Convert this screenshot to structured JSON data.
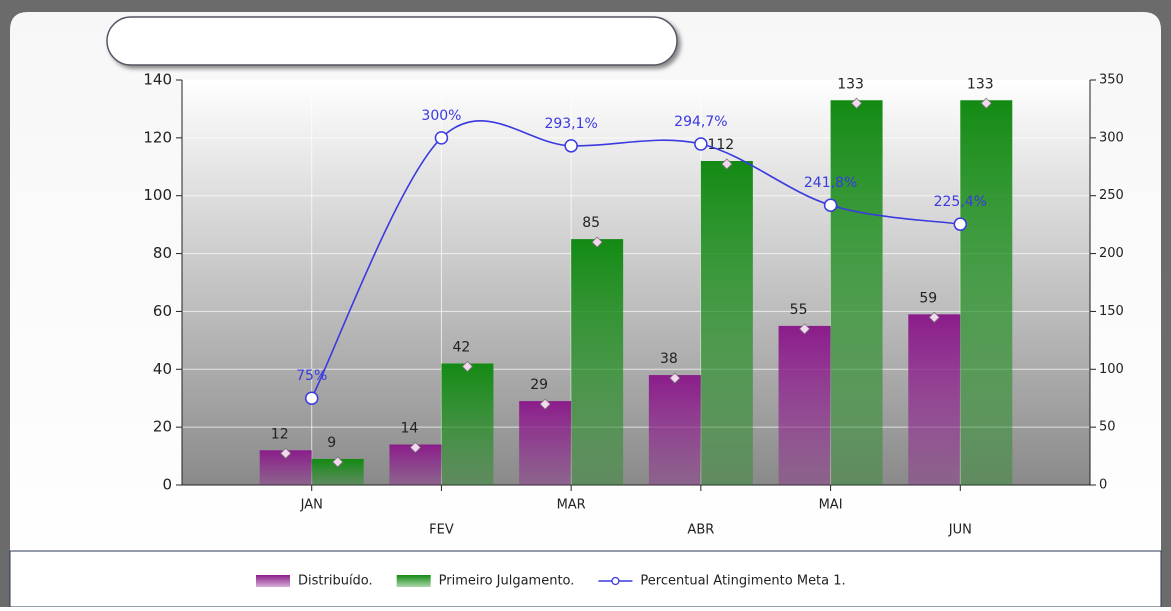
{
  "chart_data": {
    "type": "bar",
    "categories": [
      "JAN",
      "FEV",
      "MAR",
      "ABR",
      "MAI",
      "JUN"
    ],
    "series": [
      {
        "name": "Distribuído.",
        "color": "#8b1c8b",
        "type": "bar",
        "values": [
          12,
          14,
          29,
          38,
          55,
          59
        ]
      },
      {
        "name": "Primeiro Julgamento.",
        "color": "#138a13",
        "type": "bar",
        "values": [
          9,
          42,
          85,
          112,
          133,
          133
        ]
      },
      {
        "name": "Percentual Atingimento Meta 1.",
        "color": "#3a3ae0",
        "type": "line",
        "axis": "y2",
        "values": [
          75,
          300,
          293.1,
          294.7,
          241.8,
          225.4
        ],
        "value_labels": [
          "75%",
          "300%",
          "293,1%",
          "294,7%",
          "241,8%",
          "225,4%"
        ]
      }
    ],
    "ylim": [
      0,
      140
    ],
    "yticks": [
      0,
      20,
      40,
      60,
      80,
      100,
      120,
      140
    ],
    "y2lim": [
      0,
      350
    ],
    "y2ticks": [
      0,
      50,
      100,
      150,
      200,
      250,
      300,
      350
    ],
    "grid": true,
    "legend": "bottom"
  }
}
